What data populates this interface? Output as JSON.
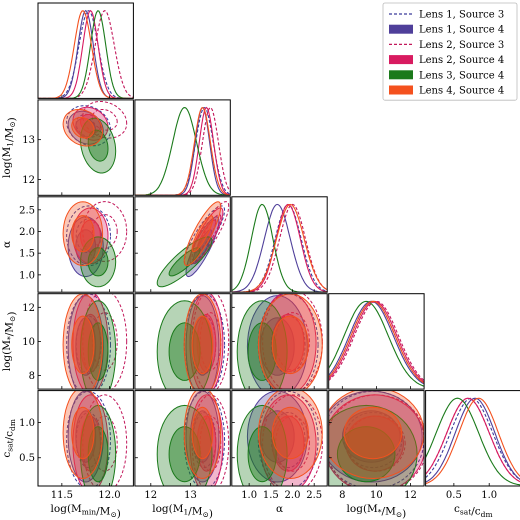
{
  "chart_data": {
    "type": "corner",
    "parameters": [
      {
        "key": "logMmin",
        "label": "log(M_min/M_⊙)",
        "range": [
          11.25,
          12.25
        ],
        "ticks": [
          11.5,
          12.0
        ]
      },
      {
        "key": "logM1",
        "label": "log(M_1/M_⊙)",
        "range": [
          11.6,
          14.0
        ],
        "ticks": [
          12,
          13
        ]
      },
      {
        "key": "alpha",
        "label": "α",
        "range": [
          0.6,
          2.8
        ],
        "ticks": [
          1.0,
          1.5,
          2.0,
          2.5
        ]
      },
      {
        "key": "logMstar",
        "label": "log(M_*/M_⊙)",
        "range": [
          7.2,
          12.8
        ],
        "ticks": [
          8,
          10,
          12
        ]
      },
      {
        "key": "csat",
        "label": "c_sat/c_dm",
        "range": [
          0.1,
          1.45
        ],
        "ticks": [
          0.5,
          1.0
        ]
      }
    ],
    "y_tick_labels": {
      "logM1": [
        12,
        13
      ],
      "alpha": [
        1.0,
        1.5,
        2.0,
        2.5
      ],
      "logMstar": [
        8,
        10,
        12
      ],
      "csat": [
        0.5,
        1.0
      ]
    },
    "legend": {
      "position": "top-right",
      "entries": [
        {
          "name": "Lens 1, Source 3",
          "style": "dashed",
          "color": "#3b3b9b"
        },
        {
          "name": "Lens 1, Source 4",
          "style": "filled",
          "color": "#4f3f9a"
        },
        {
          "name": "Lens 2, Source 3",
          "style": "dashed",
          "color": "#c2185b"
        },
        {
          "name": "Lens 2, Source 4",
          "style": "filled",
          "color": "#d81b60"
        },
        {
          "name": "Lens 3, Source 4",
          "style": "filled",
          "color": "#1b7a1b"
        },
        {
          "name": "Lens 4, Source 4",
          "style": "filled",
          "color": "#f4511e"
        }
      ]
    },
    "series": [
      {
        "name": "Lens 1, Source 3",
        "style": "dashed",
        "color": "#3b3b9b",
        "mean": {
          "logMmin": 11.78,
          "logM1": 13.35,
          "alpha": 1.9,
          "logMstar": 9.8,
          "csat": 0.75
        },
        "sd": {
          "logMmin": 0.1,
          "logM1": 0.22,
          "alpha": 0.3,
          "logMstar": 1.3,
          "csat": 0.3
        }
      },
      {
        "name": "Lens 1, Source 4",
        "style": "filled",
        "color": "#4f3f9a",
        "mean": {
          "logMmin": 11.75,
          "logM1": 13.3,
          "alpha": 1.65,
          "logMstar": 9.7,
          "csat": 0.8
        },
        "sd": {
          "logMmin": 0.08,
          "logM1": 0.18,
          "alpha": 0.3,
          "logMstar": 1.3,
          "csat": 0.28
        }
      },
      {
        "name": "Lens 2, Source 3",
        "style": "dashed",
        "color": "#c2185b",
        "mean": {
          "logMmin": 11.95,
          "logM1": 13.5,
          "alpha": 2.0,
          "logMstar": 10.0,
          "csat": 0.7
        },
        "sd": {
          "logMmin": 0.1,
          "logM1": 0.2,
          "alpha": 0.3,
          "logMstar": 1.3,
          "csat": 0.3
        }
      },
      {
        "name": "Lens 2, Source 4",
        "style": "filled",
        "color": "#d81b60",
        "mean": {
          "logMmin": 11.8,
          "logM1": 13.4,
          "alpha": 1.9,
          "logMstar": 9.9,
          "csat": 0.7
        },
        "sd": {
          "logMmin": 0.08,
          "logM1": 0.18,
          "alpha": 0.28,
          "logMstar": 1.3,
          "csat": 0.3
        }
      },
      {
        "name": "Lens 3, Source 4",
        "style": "filled",
        "color": "#1b7a1b",
        "mean": {
          "logMmin": 11.88,
          "logM1": 12.85,
          "alpha": 1.3,
          "logMstar": 9.4,
          "csat": 0.55
        },
        "sd": {
          "logMmin": 0.08,
          "logM1": 0.3,
          "alpha": 0.25,
          "logMstar": 1.3,
          "csat": 0.3
        }
      },
      {
        "name": "Lens 4, Source 4",
        "style": "filled",
        "color": "#f4511e",
        "mean": {
          "logMmin": 11.72,
          "logM1": 13.3,
          "alpha": 1.95,
          "logMstar": 9.8,
          "csat": 0.85
        },
        "sd": {
          "logMmin": 0.09,
          "logM1": 0.2,
          "alpha": 0.32,
          "logMstar": 1.3,
          "csat": 0.28
        }
      }
    ],
    "correlations": {
      "logM1|alpha": 0.85,
      "logMmin|logM1": -0.2
    }
  }
}
